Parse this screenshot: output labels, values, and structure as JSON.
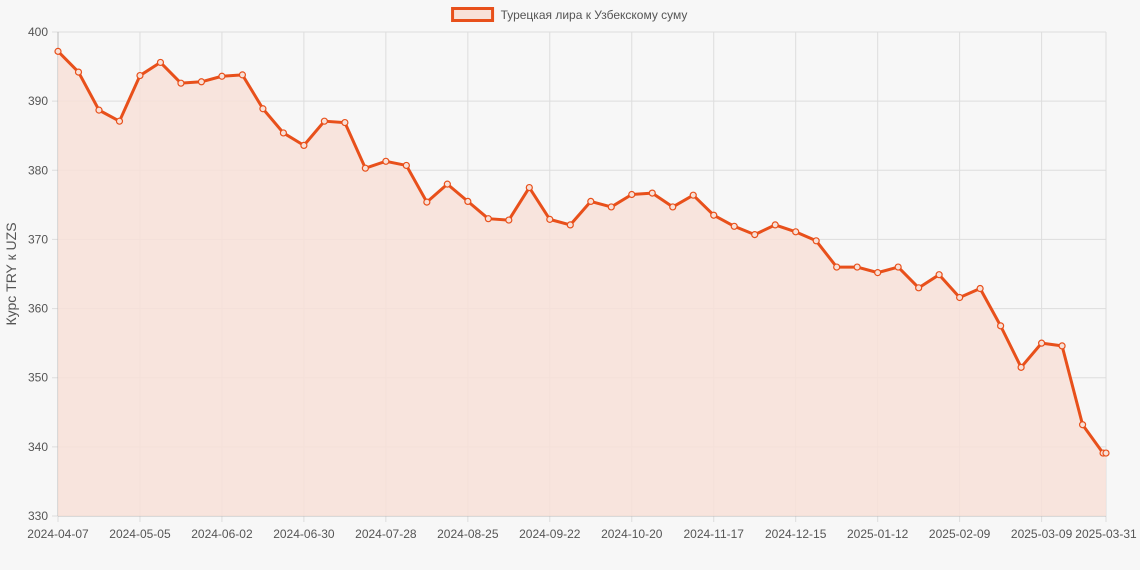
{
  "chart_data": {
    "type": "area",
    "legend": {
      "label": "Турецкая лира к Узбекскому суму",
      "placement": "top-center"
    },
    "ylabel": "Курс TRY к UZS",
    "xlabel": "",
    "ylim": [
      330,
      400
    ],
    "y_ticks": [
      "330",
      "340",
      "350",
      "360",
      "370",
      "380",
      "390",
      "400"
    ],
    "x_tick_labels": [
      "2024-04-07",
      "2024-05-05",
      "2024-06-02",
      "2024-06-30",
      "2024-07-28",
      "2024-08-25",
      "2024-09-22",
      "2024-10-20",
      "2024-11-17",
      "2024-12-15",
      "2025-01-12",
      "2025-02-09",
      "2025-03-09",
      "2025-03-31"
    ],
    "grid": true,
    "colors": {
      "line": "#e8501b",
      "fill": "#f8e1d8",
      "grid": "#dddddd",
      "axis": "#bbbbbb"
    },
    "series": [
      {
        "name": "Турецкая лира к Узбекскому суму",
        "x": [
          "2024-04-07",
          "2024-04-14",
          "2024-04-21",
          "2024-04-28",
          "2024-05-05",
          "2024-05-12",
          "2024-05-19",
          "2024-05-26",
          "2024-06-02",
          "2024-06-09",
          "2024-06-16",
          "2024-06-23",
          "2024-06-30",
          "2024-07-07",
          "2024-07-14",
          "2024-07-21",
          "2024-07-28",
          "2024-08-04",
          "2024-08-11",
          "2024-08-18",
          "2024-08-25",
          "2024-09-01",
          "2024-09-08",
          "2024-09-15",
          "2024-09-22",
          "2024-09-29",
          "2024-10-06",
          "2024-10-13",
          "2024-10-20",
          "2024-10-27",
          "2024-11-03",
          "2024-11-10",
          "2024-11-17",
          "2024-11-24",
          "2024-12-01",
          "2024-12-08",
          "2024-12-15",
          "2024-12-22",
          "2024-12-29",
          "2025-01-05",
          "2025-01-12",
          "2025-01-19",
          "2025-01-26",
          "2025-02-02",
          "2025-02-09",
          "2025-02-16",
          "2025-02-23",
          "2025-03-02",
          "2025-03-09",
          "2025-03-16",
          "2025-03-23",
          "2025-03-30",
          "2025-03-31"
        ],
        "y": [
          397.2,
          394.2,
          388.7,
          387.1,
          393.7,
          395.6,
          392.6,
          392.8,
          393.6,
          393.8,
          388.9,
          385.4,
          383.6,
          387.1,
          386.9,
          380.3,
          381.3,
          380.7,
          375.4,
          378.0,
          375.5,
          373.0,
          372.8,
          377.5,
          372.9,
          372.1,
          375.5,
          374.7,
          376.5,
          376.7,
          374.7,
          376.4,
          373.5,
          371.9,
          370.7,
          372.1,
          371.1,
          369.8,
          366.0,
          366.0,
          365.2,
          366.0,
          363.0,
          364.9,
          361.6,
          362.9,
          357.5,
          351.5,
          355.0,
          354.6,
          343.2,
          339.1,
          339.1
        ]
      }
    ]
  }
}
